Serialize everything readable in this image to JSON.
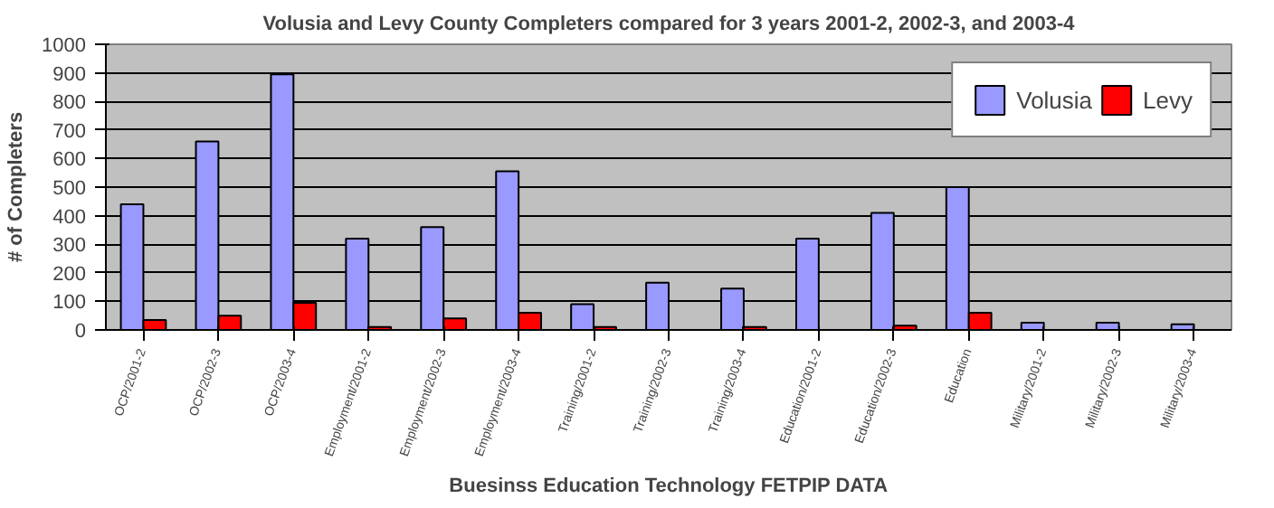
{
  "chart_data": {
    "type": "bar",
    "title": "Volusia and Levy County Completers compared for 3 years 2001-2, 2002-3, and 2003-4",
    "xlabel": "Buesinss Education Technology FETPIP DATA",
    "ylabel": "# of Completers",
    "categories": [
      "OCP/2001-2",
      "OCP/2002-3",
      "OCP/2003-4",
      "Employment/2001-2",
      "Employment/2002-3",
      "Employment/2003-4",
      "Training/2001-2",
      "Training/2002-3",
      "Training/2003-4",
      "Education/2001-2",
      "Education/2002-3",
      "Education",
      "Military/2001-2",
      "Military/2002-3",
      "Military/2003-4"
    ],
    "series": [
      {
        "name": "Volusia",
        "color": "#9999ff",
        "values": [
          440,
          660,
          895,
          320,
          360,
          555,
          90,
          165,
          145,
          320,
          410,
          500,
          25,
          25,
          20
        ]
      },
      {
        "name": "Levy",
        "color": "#ff0000",
        "values": [
          35,
          50,
          95,
          10,
          40,
          60,
          10,
          null,
          10,
          null,
          15,
          60,
          null,
          null,
          null
        ]
      }
    ],
    "ylim": [
      0,
      1000
    ],
    "yticks": [
      0,
      100,
      200,
      300,
      400,
      500,
      600,
      700,
      800,
      900,
      1000
    ],
    "grid": "y",
    "legend": "top right"
  }
}
